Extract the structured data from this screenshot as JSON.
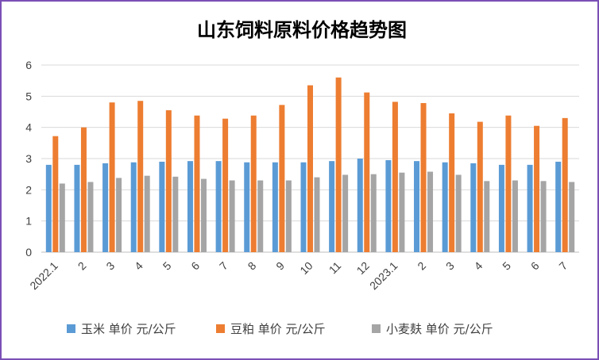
{
  "chart_data": {
    "type": "bar",
    "title": "山东饲料原料价格趋势图",
    "categories": [
      "2022.1",
      "2",
      "3",
      "4",
      "5",
      "6",
      "7",
      "8",
      "9",
      "10",
      "11",
      "12",
      "2023.1",
      "2",
      "3",
      "4",
      "5",
      "6",
      "7"
    ],
    "series": [
      {
        "name": "玉米 单价 元/公斤",
        "color": "#5b9bd5",
        "values": [
          2.8,
          2.8,
          2.85,
          2.88,
          2.9,
          2.92,
          2.92,
          2.88,
          2.88,
          2.88,
          2.92,
          3.0,
          2.95,
          2.92,
          2.88,
          2.85,
          2.8,
          2.8,
          2.9
        ]
      },
      {
        "name": "豆粕 单价 元/公斤",
        "color": "#ed7d31",
        "values": [
          3.72,
          4.0,
          4.8,
          4.85,
          4.55,
          4.38,
          4.28,
          4.38,
          4.72,
          5.35,
          5.6,
          5.12,
          4.82,
          4.78,
          4.45,
          4.18,
          4.38,
          4.05,
          4.3
        ]
      },
      {
        "name": "小麦麸 单价 元/公斤",
        "color": "#a5a5a5",
        "values": [
          2.2,
          2.25,
          2.38,
          2.45,
          2.42,
          2.35,
          2.3,
          2.3,
          2.3,
          2.4,
          2.48,
          2.5,
          2.55,
          2.58,
          2.48,
          2.28,
          2.3,
          2.28,
          2.25
        ]
      }
    ],
    "yticks": [
      "0",
      "1",
      "2",
      "3",
      "4",
      "5",
      "6"
    ],
    "ylim": [
      0,
      6
    ],
    "grid": true,
    "legend_position": "bottom"
  }
}
